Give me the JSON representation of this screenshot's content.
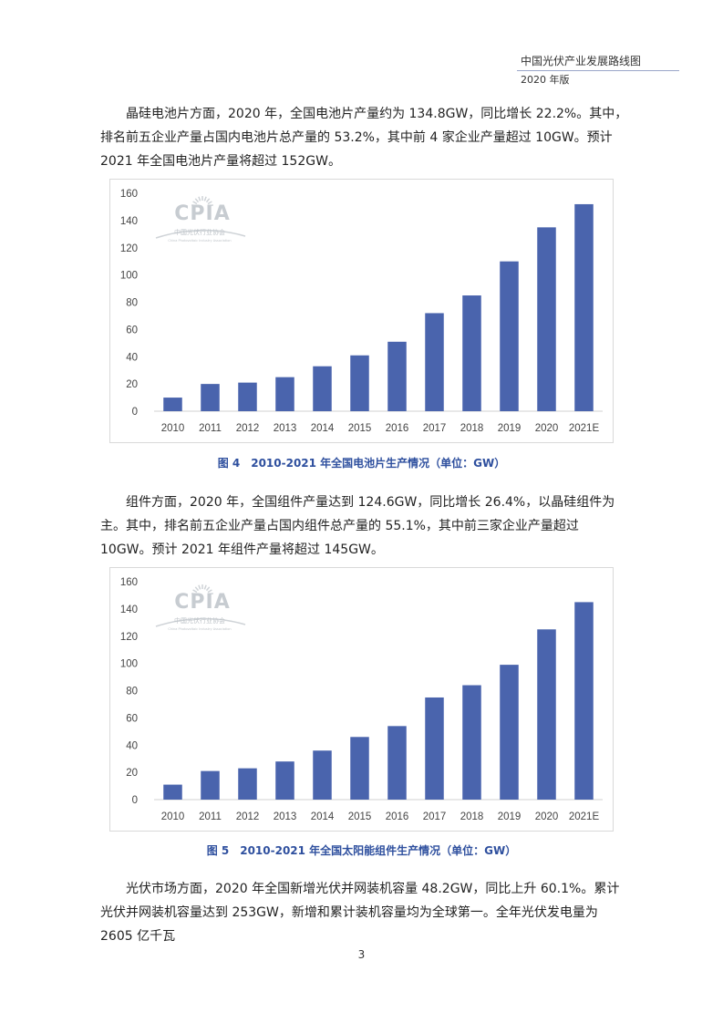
{
  "header": {
    "title": "中国光伏产业发展路线图",
    "subtitle": "2020 年版"
  },
  "paragraphs": [
    "晶硅电池片方面，2020 年，全国电池片产量约为 134.8GW，同比增长 22.2%。其中，排名前五企业产量占国内电池片总产量的 53.2%，其中前 4 家企业产量超过 10GW。预计 2021 年全国电池片产量将超过 152GW。",
    "组件方面，2020 年，全国组件产量达到 124.6GW，同比增长 26.4%，以晶硅组件为主。其中，排名前五企业产量占国内组件总产量的 55.1%，其中前三家企业产量超过 10GW。预计 2021 年组件产量将超过 145GW。",
    "光伏市场方面，2020 年全国新增光伏并网装机容量 48.2GW，同比上升 60.1%。累计光伏并网装机容量达到 253GW，新增和累计装机容量均为全球第一。全年光伏发电量为 2605 亿千瓦"
  ],
  "watermark": {
    "logo_text": "CPIA",
    "org_name": "中国光伏行业协会",
    "org_name_en": "China Photovoltaic Industry Association"
  },
  "chart_data": [
    {
      "type": "bar",
      "categories": [
        "2010",
        "2011",
        "2012",
        "2013",
        "2014",
        "2015",
        "2016",
        "2017",
        "2018",
        "2019",
        "2020",
        "2021E"
      ],
      "values": [
        10,
        20,
        21,
        25,
        33,
        41,
        51,
        72,
        85,
        110,
        135,
        152
      ],
      "ylim": [
        0,
        160
      ],
      "yticks": [
        0,
        20,
        40,
        60,
        80,
        100,
        120,
        140,
        160
      ],
      "grid": false,
      "color": "#4a64ad",
      "caption": "图 4　2010-2021 年全国电池片生产情况（单位：GW）"
    },
    {
      "type": "bar",
      "categories": [
        "2010",
        "2011",
        "2012",
        "2013",
        "2014",
        "2015",
        "2016",
        "2017",
        "2018",
        "2019",
        "2020",
        "2021E"
      ],
      "values": [
        11,
        21,
        23,
        28,
        36,
        46,
        54,
        75,
        84,
        99,
        125,
        145
      ],
      "ylim": [
        0,
        160
      ],
      "yticks": [
        0,
        20,
        40,
        60,
        80,
        100,
        120,
        140,
        160
      ],
      "grid": false,
      "color": "#4a64ad",
      "caption": "图 5　2010-2021 年全国太阳能组件生产情况（单位：GW）"
    }
  ],
  "page_number": "3"
}
